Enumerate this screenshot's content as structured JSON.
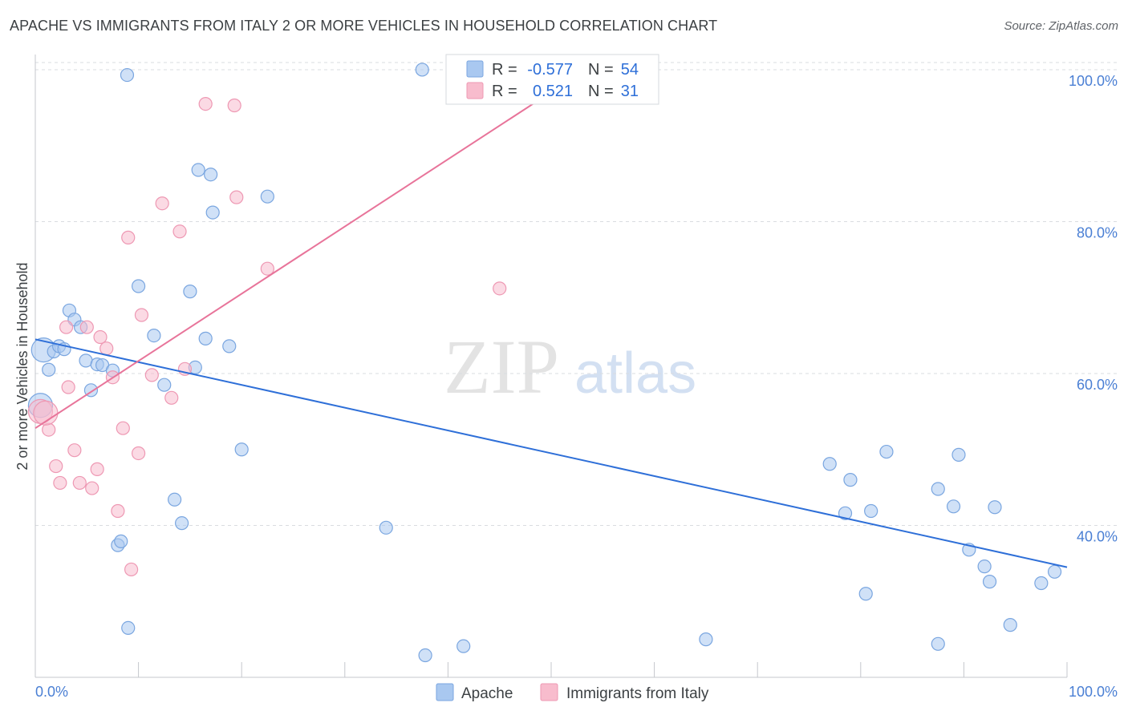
{
  "chart_data": {
    "type": "scatter",
    "title": "APACHE VS IMMIGRANTS FROM ITALY 2 OR MORE VEHICLES IN HOUSEHOLD CORRELATION CHART",
    "source": "Source: ZipAtlas.com",
    "xlabel": "",
    "ylabel": "2 or more Vehicles in Household",
    "xlim": [
      0,
      100
    ],
    "ylim": [
      20,
      102
    ],
    "x_tick_labels": [
      "0.0%",
      "100.0%"
    ],
    "y_ticks": [
      40,
      60,
      80,
      100
    ],
    "y_tick_labels": [
      "40.0%",
      "60.0%",
      "80.0%",
      "100.0%"
    ],
    "watermark": {
      "zip": "ZIP",
      "atlas": "atlas"
    },
    "colors": {
      "apache_fill": "#a9c8f0",
      "apache_stroke": "#7aa6e0",
      "apache_line": "#2e6fd8",
      "italy_fill": "#f8bccd",
      "italy_stroke": "#ee98b3",
      "italy_line": "#e8749a",
      "tick_text": "#4a7fd4",
      "grid": "#dadce0"
    },
    "stats": [
      {
        "r_label": "R =",
        "r_value": "-0.577",
        "n_label": "N =",
        "n_value": "54"
      },
      {
        "r_label": "R =",
        "r_value": "0.521",
        "n_label": "N =",
        "n_value": "31"
      }
    ],
    "series": [
      {
        "name": "Apache",
        "trend": {
          "x0": 0,
          "y0": 64.5,
          "x1": 100,
          "y1": 34.5
        },
        "points": [
          [
            0.5,
            55.8
          ],
          [
            0.8,
            63.1
          ],
          [
            1.3,
            60.5
          ],
          [
            1.8,
            62.9
          ],
          [
            2.3,
            63.6
          ],
          [
            2.8,
            63.2
          ],
          [
            3.3,
            68.3
          ],
          [
            3.8,
            67.1
          ],
          [
            4.4,
            66.1
          ],
          [
            4.9,
            61.7
          ],
          [
            5.4,
            57.8
          ],
          [
            6.0,
            61.2
          ],
          [
            6.5,
            61.1
          ],
          [
            7.5,
            60.4
          ],
          [
            8.0,
            37.4
          ],
          [
            8.3,
            37.9
          ],
          [
            9.0,
            26.5
          ],
          [
            8.9,
            99.3
          ],
          [
            10.0,
            71.5
          ],
          [
            11.5,
            65.0
          ],
          [
            12.5,
            58.5
          ],
          [
            13.5,
            43.4
          ],
          [
            14.2,
            40.3
          ],
          [
            15.0,
            70.8
          ],
          [
            15.5,
            60.8
          ],
          [
            15.8,
            86.8
          ],
          [
            16.5,
            64.6
          ],
          [
            17.0,
            86.2
          ],
          [
            17.2,
            81.2
          ],
          [
            18.8,
            63.6
          ],
          [
            20.0,
            50.0
          ],
          [
            22.5,
            83.3
          ],
          [
            34.0,
            39.7
          ],
          [
            37.5,
            100.0
          ],
          [
            37.8,
            22.9
          ],
          [
            41.5,
            24.1
          ],
          [
            65.0,
            25.0
          ],
          [
            77.0,
            48.1
          ],
          [
            78.5,
            41.6
          ],
          [
            79.0,
            46.0
          ],
          [
            80.5,
            31.0
          ],
          [
            81.0,
            41.9
          ],
          [
            82.5,
            49.7
          ],
          [
            87.5,
            44.8
          ],
          [
            87.5,
            24.4
          ],
          [
            89.0,
            42.5
          ],
          [
            89.5,
            49.3
          ],
          [
            90.5,
            36.8
          ],
          [
            92.0,
            34.6
          ],
          [
            92.5,
            32.6
          ],
          [
            93.0,
            42.4
          ],
          [
            94.5,
            26.9
          ],
          [
            97.5,
            32.4
          ],
          [
            98.8,
            33.9
          ]
        ]
      },
      {
        "name": "Immigrants from Italy",
        "trend": {
          "x0": 0,
          "y0": 52.8,
          "x1": 50.5,
          "y1": 97.5
        },
        "points": [
          [
            0.5,
            55.0
          ],
          [
            1.3,
            52.6
          ],
          [
            2.0,
            47.8
          ],
          [
            2.4,
            45.6
          ],
          [
            3.0,
            66.1
          ],
          [
            3.2,
            58.2
          ],
          [
            3.8,
            49.9
          ],
          [
            4.3,
            45.6
          ],
          [
            5.0,
            66.1
          ],
          [
            5.5,
            44.9
          ],
          [
            6.0,
            47.4
          ],
          [
            6.3,
            64.8
          ],
          [
            6.9,
            63.3
          ],
          [
            7.5,
            59.5
          ],
          [
            8.0,
            41.9
          ],
          [
            8.5,
            52.8
          ],
          [
            9.0,
            77.9
          ],
          [
            9.3,
            34.2
          ],
          [
            10.0,
            49.5
          ],
          [
            10.3,
            67.7
          ],
          [
            11.3,
            59.8
          ],
          [
            12.3,
            82.4
          ],
          [
            13.2,
            56.8
          ],
          [
            14.0,
            78.7
          ],
          [
            14.5,
            60.6
          ],
          [
            16.5,
            95.5
          ],
          [
            19.3,
            95.3
          ],
          [
            19.5,
            83.2
          ],
          [
            22.5,
            73.8
          ],
          [
            45.0,
            71.2
          ],
          [
            1.0,
            54.8
          ]
        ]
      }
    ]
  },
  "legend": {
    "items": [
      "Apache",
      "Immigrants from Italy"
    ]
  }
}
